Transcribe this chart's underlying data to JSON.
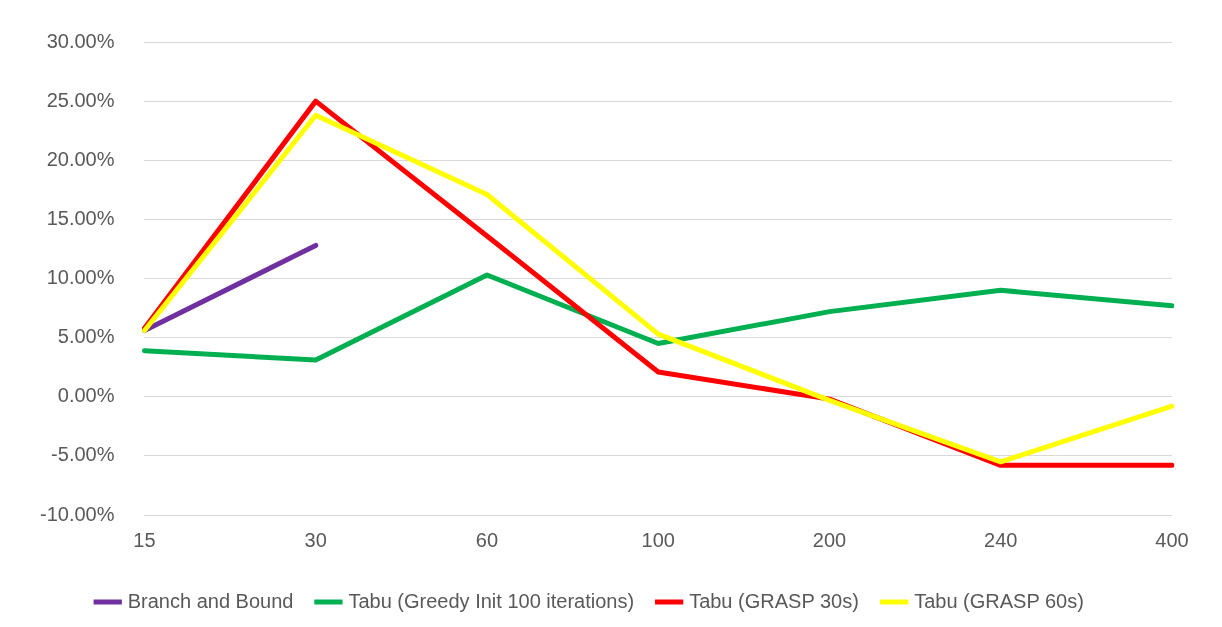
{
  "chart_data": {
    "type": "line",
    "categories": [
      "15",
      "30",
      "60",
      "100",
      "200",
      "240",
      "400"
    ],
    "series": [
      {
        "name": "Branch and Bound",
        "color": "#7030a0",
        "values": [
          5.6,
          12.8,
          null,
          null,
          null,
          null,
          null
        ]
      },
      {
        "name": "Tabu (Greedy Init 100 iterations)",
        "color": "#00b050",
        "values": [
          3.9,
          3.1,
          10.3,
          4.5,
          7.2,
          9.0,
          7.7
        ]
      },
      {
        "name": "Tabu (GRASP 30s)",
        "color": "#ff0000",
        "values": [
          5.8,
          25.0,
          13.6,
          2.1,
          -0.2,
          -5.8,
          -5.8
        ]
      },
      {
        "name": "Tabu (GRASP 60s)",
        "color": "#ffff00",
        "values": [
          5.6,
          23.8,
          17.1,
          5.3,
          -0.3,
          -5.5,
          -0.8
        ]
      }
    ],
    "ylim": [
      -10,
      30
    ],
    "yticks": [
      {
        "value": -10,
        "label": "-10.00%"
      },
      {
        "value": -5,
        "label": "-5.00%"
      },
      {
        "value": 0,
        "label": "0.00%"
      },
      {
        "value": 5,
        "label": "5.00%"
      },
      {
        "value": 10,
        "label": "10.00%"
      },
      {
        "value": 15,
        "label": "15.00%"
      },
      {
        "value": 20,
        "label": "20.00%"
      },
      {
        "value": 25,
        "label": "25.00%"
      },
      {
        "value": 30,
        "label": "30.00%"
      }
    ],
    "grid": "y",
    "legend": "bottom",
    "marker": "none",
    "line_style": "solid"
  }
}
